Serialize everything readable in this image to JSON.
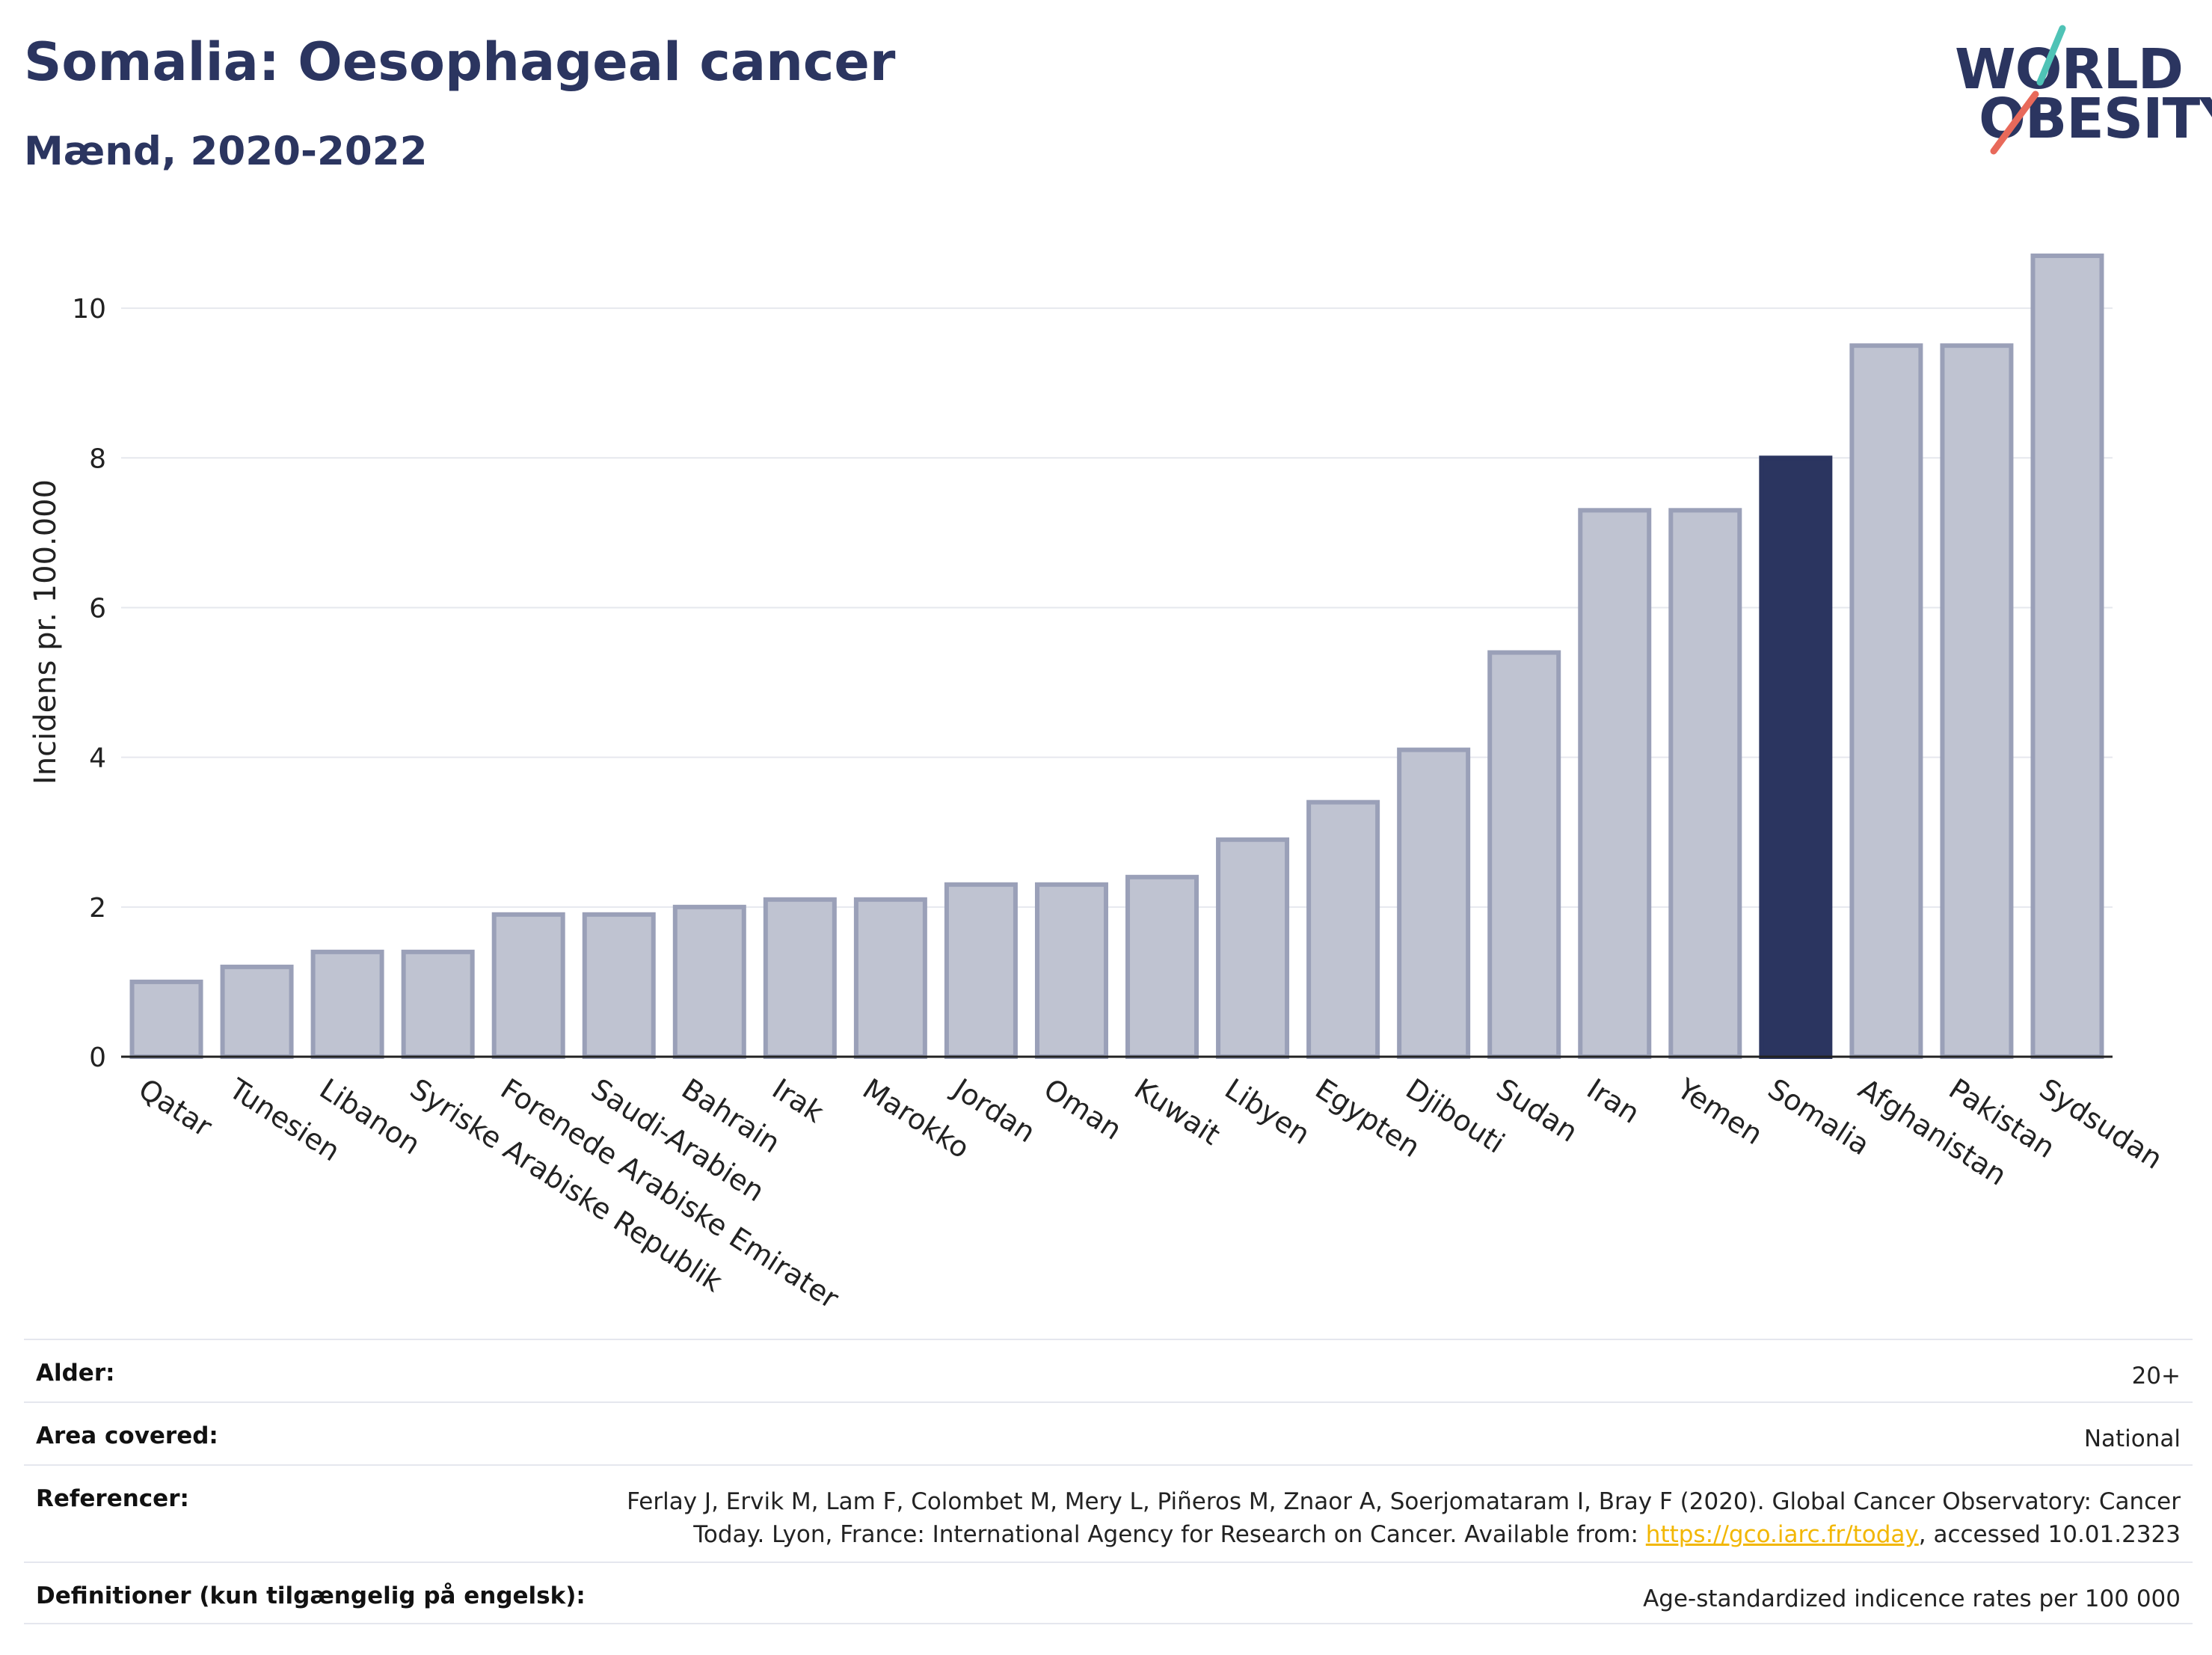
{
  "header": {
    "title": "Somalia: Oesophageal cancer",
    "subtitle": "Mænd, 2020-2022"
  },
  "logo": {
    "line1": "WORLD",
    "line2": "OBESITY",
    "accent1": "#4fc3b6",
    "accent2": "#e8695a"
  },
  "colors": {
    "bar": "#bfc3d1",
    "bar_border": "#9aa0b8",
    "highlight": "#2b3560",
    "grid": "#e6e8ee",
    "axis": "#222222"
  },
  "chart_data": {
    "type": "bar",
    "title": "Somalia: Oesophageal cancer",
    "subtitle": "Mænd, 2020-2022",
    "ylabel": "Incidens pr. 100.000",
    "xlabel": "",
    "ylim": [
      0,
      11
    ],
    "yticks": [
      0,
      2,
      4,
      6,
      8,
      10
    ],
    "grid": true,
    "highlight": "Somalia",
    "categories": [
      "Qatar",
      "Tunesien",
      "Libanon",
      "Syriske Arabiske Republik",
      "Forenede Arabiske Emirater",
      "Saudi-Arabien",
      "Bahrain",
      "Irak",
      "Marokko",
      "Jordan",
      "Oman",
      "Kuwait",
      "Libyen",
      "Egypten",
      "Djibouti",
      "Sudan",
      "Iran",
      "Yemen",
      "Somalia",
      "Afghanistan",
      "Pakistan",
      "Sydsudan"
    ],
    "values": [
      1.0,
      1.2,
      1.4,
      1.4,
      1.9,
      1.9,
      2.0,
      2.1,
      2.1,
      2.3,
      2.3,
      2.4,
      2.9,
      3.4,
      4.1,
      5.4,
      7.3,
      7.3,
      8.0,
      9.5,
      9.5,
      10.7
    ]
  },
  "meta": {
    "age_label": "Alder:",
    "age_value": "20+",
    "area_label": "Area covered:",
    "area_value": "National",
    "ref_label": "Referencer:",
    "ref_line1": "Ferlay J, Ervik M, Lam F, Colombet M, Mery L, Piñeros M, Znaor A, Soerjomataram I, Bray F (2020). Global Cancer Observatory: Cancer",
    "ref_line2_pre": "Today. Lyon, France: International Agency for Research on Cancer. Available from: ",
    "ref_link": "https://gco.iarc.fr/today",
    "ref_line2_post": ", accessed 10.01.2323",
    "def_label": "Definitioner (kun tilgængelig på engelsk):",
    "def_value": "Age-standardized indicence rates per 100 000"
  }
}
